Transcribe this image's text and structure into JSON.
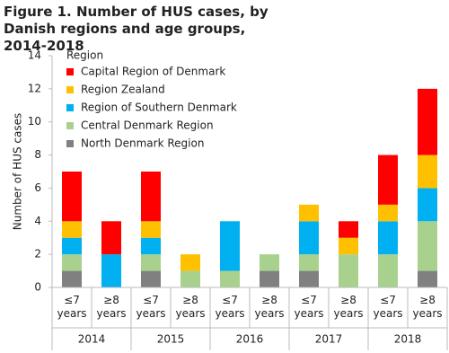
{
  "chart_data": {
    "type": "stacked_bar",
    "title": "Figure 1. Number of HUS cases, by Danish regions and age groups, 2014-2018",
    "y_label": "Number of HUS cases",
    "legend_title": "Region",
    "categories": [
      "≤7 years",
      "≥8 years",
      "≤7 years",
      "≥8 years",
      "≤7 years",
      "≥8 years",
      "≤7 years",
      "≥8 years",
      "≤7 years",
      "≥8 years"
    ],
    "groups": [
      "2014",
      "2015",
      "2016",
      "2017",
      "2018"
    ],
    "series": [
      {
        "name": "Capital Region of Denmark",
        "color": "#ff0000",
        "values": [
          3,
          2,
          3,
          0,
          0,
          0,
          0,
          1,
          3,
          4
        ]
      },
      {
        "name": "Region Zealand",
        "color": "#ffc000",
        "values": [
          1,
          0,
          1,
          1,
          0,
          0,
          1,
          1,
          1,
          2
        ]
      },
      {
        "name": "Region of Southern Denmark",
        "color": "#00b0f0",
        "values": [
          1,
          2,
          1,
          0,
          3,
          0,
          2,
          0,
          2,
          2
        ]
      },
      {
        "name": "Central Denmark Region",
        "color": "#a9d18e",
        "values": [
          1,
          0,
          1,
          1,
          1,
          1,
          1,
          2,
          2,
          3
        ]
      },
      {
        "name": "North Denmark Region",
        "color": "#808080",
        "values": [
          1,
          0,
          1,
          0,
          0,
          1,
          1,
          0,
          0,
          1
        ]
      }
    ],
    "ylim": [
      0,
      14
    ],
    "yticks": [
      0,
      2,
      4,
      6,
      8,
      10,
      12,
      14
    ],
    "grid": false
  }
}
